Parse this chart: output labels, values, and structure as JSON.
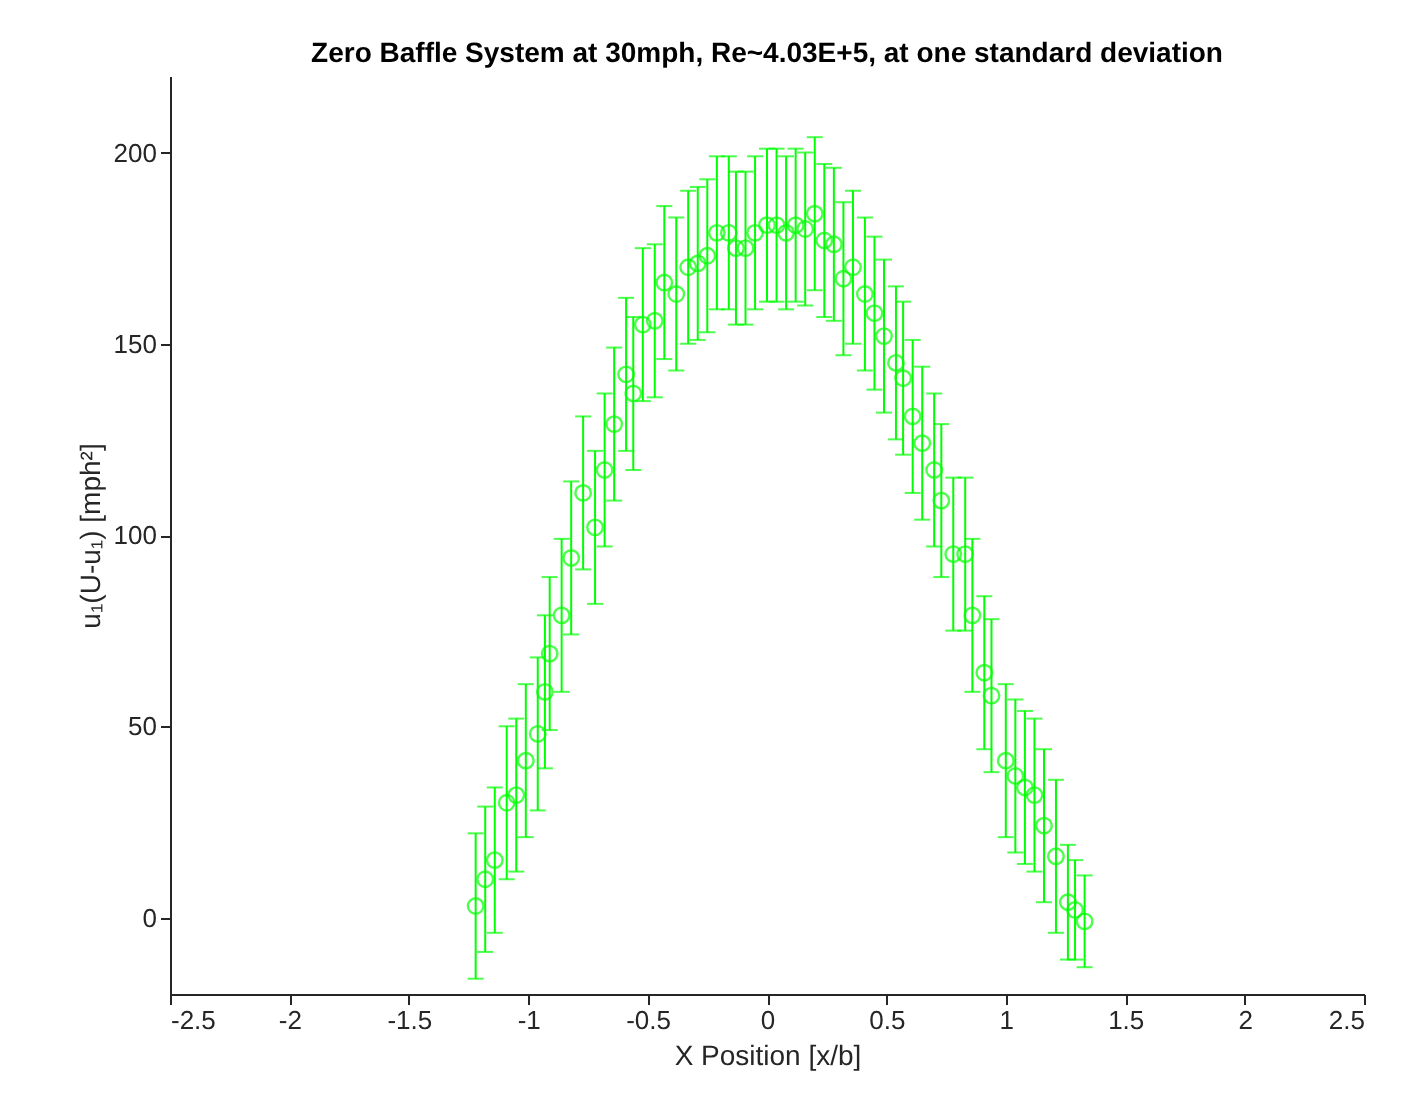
{
  "chart_data": {
    "type": "scatter",
    "title": "Zero Baffle System at 30mph, Re~4.03E+5, at one standard deviation",
    "xlabel": "X Position [x/b]",
    "ylabel": "u₁(U-u₁) [mph²]",
    "x": [
      -1.22,
      -1.18,
      -1.14,
      -1.09,
      -1.05,
      -1.01,
      -0.96,
      -0.93,
      -0.91,
      -0.86,
      -0.82,
      -0.77,
      -0.72,
      -0.68,
      -0.64,
      -0.59,
      -0.56,
      -0.52,
      -0.47,
      -0.43,
      -0.38,
      -0.33,
      -0.29,
      -0.25,
      -0.21,
      -0.16,
      -0.13,
      -0.09,
      -0.05,
      0.0,
      0.04,
      0.08,
      0.12,
      0.16,
      0.2,
      0.24,
      0.28,
      0.32,
      0.36,
      0.41,
      0.45,
      0.49,
      0.54,
      0.57,
      0.61,
      0.65,
      0.7,
      0.73,
      0.78,
      0.83,
      0.86,
      0.91,
      0.94,
      1.0,
      1.04,
      1.08,
      1.12,
      1.16,
      1.21,
      1.26,
      1.29,
      1.33
    ],
    "series": [
      {
        "color": "#00ff00",
        "values": [
          3,
          10,
          15,
          30,
          32,
          41,
          48,
          59,
          69,
          79,
          94,
          111,
          102,
          117,
          129,
          142,
          137,
          155,
          156,
          166,
          163,
          170,
          171,
          173,
          179,
          179,
          175,
          175,
          179,
          181,
          181,
          179,
          181,
          180,
          184,
          177,
          176,
          167,
          170,
          163,
          158,
          152,
          145,
          141,
          131,
          124,
          117,
          109,
          95,
          95,
          79,
          64,
          58,
          41,
          37,
          34,
          32,
          24,
          16,
          4,
          2,
          -1
        ],
        "errors": [
          19,
          19,
          19,
          20,
          20,
          20,
          20,
          20,
          20,
          20,
          20,
          20,
          20,
          20,
          20,
          20,
          20,
          20,
          20,
          20,
          20,
          20,
          20,
          20,
          20,
          20,
          20,
          20,
          20,
          20,
          20,
          20,
          20,
          20,
          20,
          20,
          20,
          20,
          20,
          20,
          20,
          20,
          20,
          20,
          20,
          20,
          20,
          20,
          20,
          20,
          20,
          20,
          20,
          20,
          20,
          20,
          20,
          20,
          20,
          15,
          13,
          12
        ]
      }
    ],
    "marker": "circle",
    "xlim": [
      -2.5,
      2.5
    ],
    "ylim": [
      -20,
      220
    ],
    "xticks": [
      -2.5,
      -2,
      -1.5,
      -1,
      -0.5,
      0,
      0.5,
      1,
      1.5,
      2,
      2.5
    ],
    "yticks": [
      0,
      50,
      100,
      150,
      200
    ],
    "grid": false
  }
}
